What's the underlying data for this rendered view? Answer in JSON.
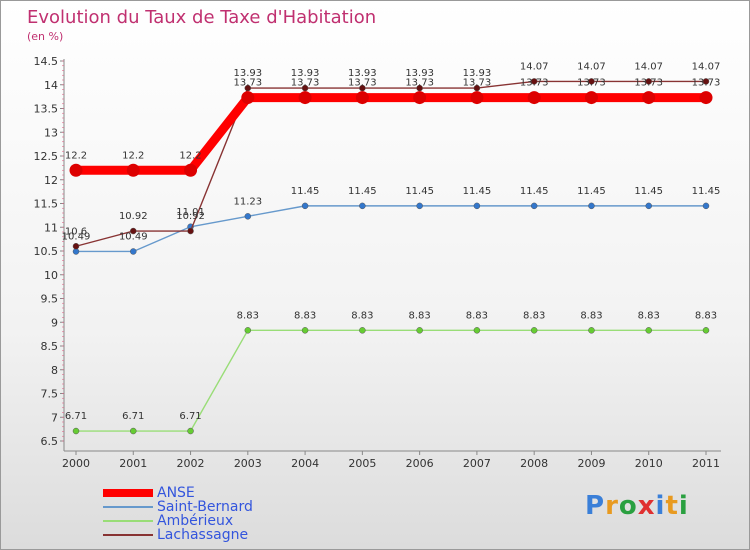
{
  "title": "Evolution du Taux de Taxe d'Habitation",
  "unit": "(en %)",
  "logo": {
    "chars": [
      "P",
      "r",
      "o",
      "x",
      "i",
      "t",
      "i"
    ],
    "colors": [
      "#3a7fd8",
      "#e89a20",
      "#2aa040",
      "#e03030",
      "#3a7fd8",
      "#e89a20",
      "#2aa040"
    ]
  },
  "chart_data": {
    "type": "line",
    "x": [
      "2000",
      "2001",
      "2002",
      "2003",
      "2004",
      "2005",
      "2006",
      "2007",
      "2008",
      "2009",
      "2010",
      "2011"
    ],
    "ylim": [
      6.5,
      14.5
    ],
    "yticks": [
      "6.5",
      "7",
      "7.5",
      "8",
      "8.5",
      "9",
      "9.5",
      "10",
      "10.5",
      "11",
      "11.5",
      "12",
      "12.5",
      "13",
      "13.5",
      "14",
      "14.5"
    ],
    "grid": false,
    "legend_position": "bottom-left",
    "series": [
      {
        "name": "ANSE",
        "color": "#ff0000",
        "marker": "#dd0000",
        "values": [
          12.2,
          12.2,
          12.2,
          13.73,
          13.73,
          13.73,
          13.73,
          13.73,
          13.73,
          13.73,
          13.73,
          13.73
        ],
        "labels": [
          "12.2",
          "12.2",
          "12.2",
          "13.73",
          "13.73",
          "13.73",
          "13.73",
          "13.73",
          "13.73",
          "13.73",
          "13.73",
          "13.73"
        ]
      },
      {
        "name": "Saint-Bernard",
        "color": "#6699cc",
        "marker": "#3377cc",
        "values": [
          10.49,
          10.49,
          11.01,
          11.23,
          11.45,
          11.45,
          11.45,
          11.45,
          11.45,
          11.45,
          11.45,
          11.45
        ],
        "labels": [
          "10.49",
          "10.49",
          "11.01",
          "11.23",
          "11.45",
          "11.45",
          "11.45",
          "11.45",
          "11.45",
          "11.45",
          "11.45",
          "11.45"
        ]
      },
      {
        "name": "Ambérieux",
        "color": "#99dd77",
        "marker": "#66cc33",
        "values": [
          6.71,
          6.71,
          6.71,
          8.83,
          8.83,
          8.83,
          8.83,
          8.83,
          8.83,
          8.83,
          8.83,
          8.83
        ],
        "labels": [
          "6.71",
          "6.71",
          "6.71",
          "8.83",
          "8.83",
          "8.83",
          "8.83",
          "8.83",
          "8.83",
          "8.83",
          "8.83",
          "8.83"
        ]
      },
      {
        "name": "Lachassagne",
        "color": "#883333",
        "marker": "#661111",
        "values": [
          10.6,
          10.92,
          10.92,
          13.93,
          13.93,
          13.93,
          13.93,
          13.93,
          14.07,
          14.07,
          14.07,
          14.07
        ],
        "labels": [
          "10.6",
          "10.92",
          "10.92",
          "13.93",
          "13.93",
          "13.93",
          "13.93",
          "13.93",
          "14.07",
          "14.07",
          "14.07",
          "14.07"
        ]
      }
    ]
  }
}
